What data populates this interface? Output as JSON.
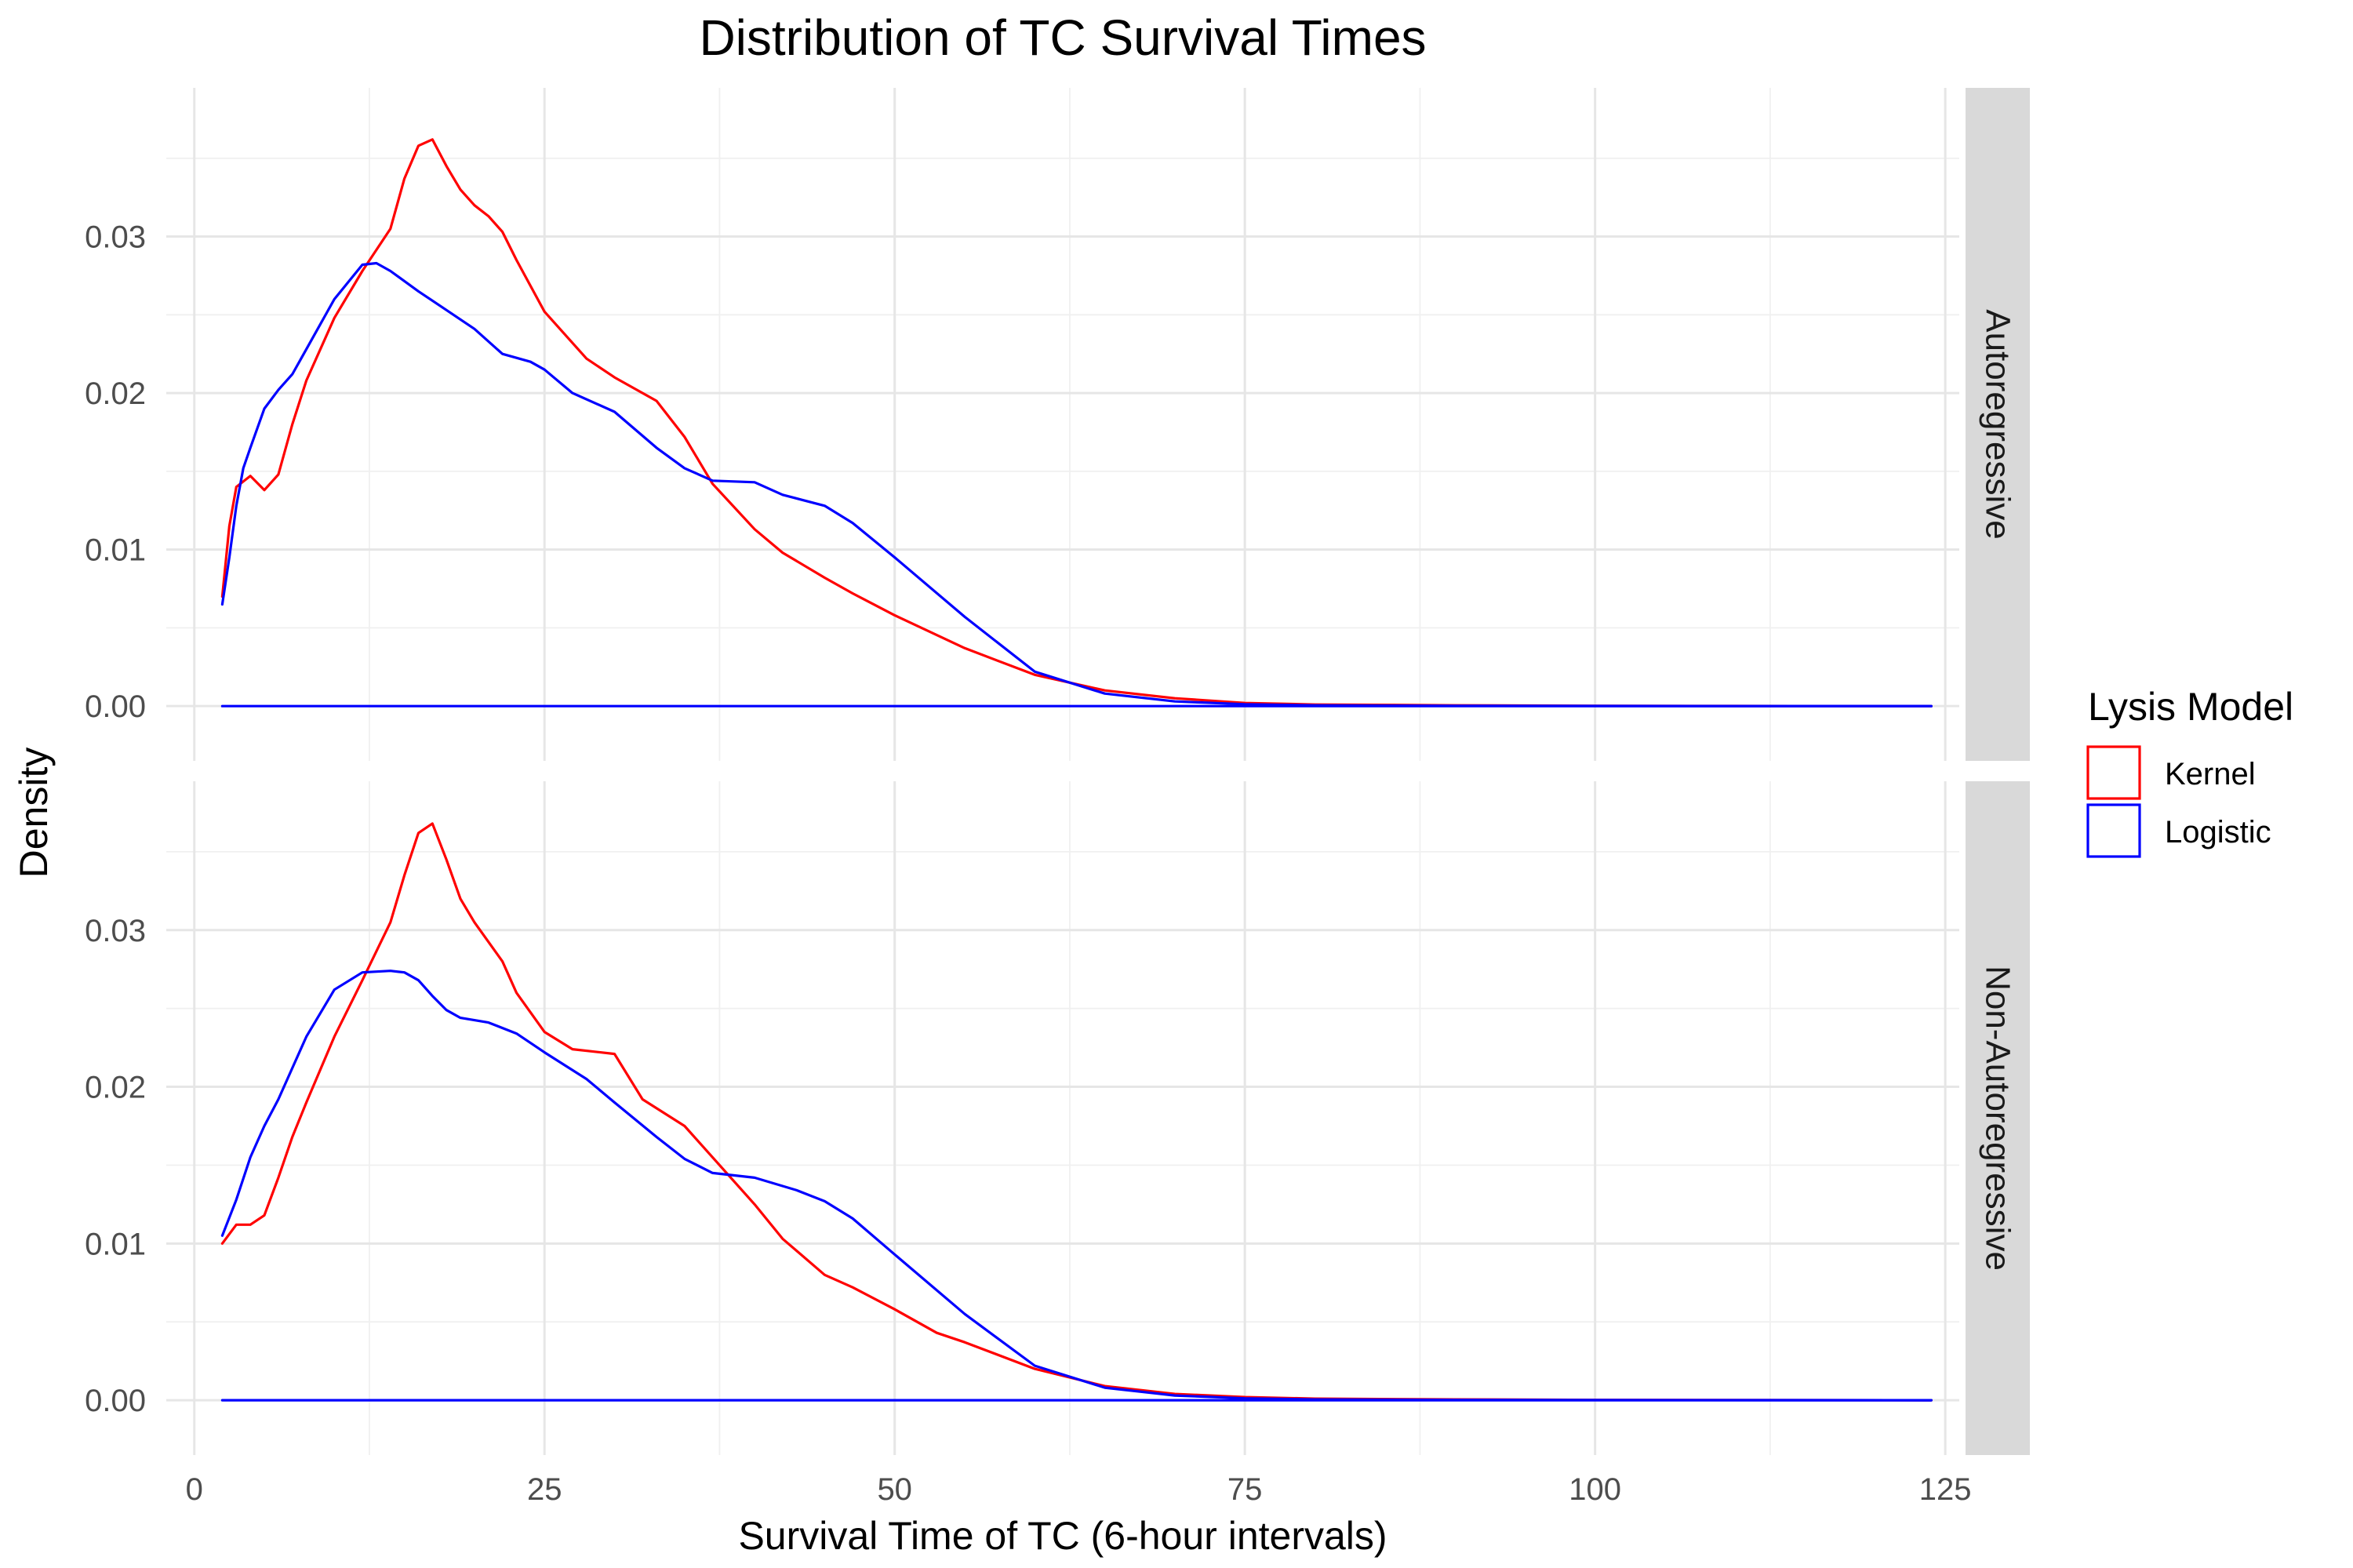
{
  "chart_data": {
    "type": "line",
    "title": "Distribution of TC Survival Times",
    "xlabel": "Survival Time of TC (6-hour intervals)",
    "ylabel": "Density",
    "xlim": [
      -2,
      126
    ],
    "ylim": [
      -0.0035,
      0.0395
    ],
    "x_ticks": [
      0,
      25,
      50,
      75,
      100,
      125
    ],
    "x_tick_labels": [
      "0",
      "25",
      "50",
      "75",
      "100",
      "125"
    ],
    "y_ticks": [
      0,
      0.01,
      0.02,
      0.03
    ],
    "y_tick_labels": [
      "0.00",
      "0.01",
      "0.02",
      "0.03"
    ],
    "grid": true,
    "legend": {
      "title": "Lysis Model",
      "position": "right",
      "entries": [
        {
          "label": "Kernel",
          "color": "#ff0000"
        },
        {
          "label": "Logistic",
          "color": "#0000ff"
        }
      ]
    },
    "facets": [
      {
        "label": "Autoregressive",
        "series": [
          {
            "name": "Kernel",
            "color": "#ff0000",
            "x": [
              2,
              2.5,
              3,
              4,
              5,
              6,
              7,
              8,
              10,
              12,
              14,
              15,
              16,
              17,
              18,
              19,
              20,
              21,
              22,
              23,
              25,
              28,
              30,
              33,
              35,
              37,
              40,
              42,
              45,
              47,
              50,
              55,
              60,
              65,
              70,
              75,
              80,
              90,
              100,
              110,
              124
            ],
            "y": [
              0.007,
              0.0115,
              0.014,
              0.0147,
              0.0138,
              0.0148,
              0.018,
              0.0208,
              0.0248,
              0.0278,
              0.0305,
              0.0337,
              0.0358,
              0.0362,
              0.0345,
              0.033,
              0.032,
              0.0313,
              0.0303,
              0.0285,
              0.0252,
              0.0222,
              0.021,
              0.0195,
              0.0172,
              0.0142,
              0.0113,
              0.0098,
              0.0082,
              0.0072,
              0.0058,
              0.0037,
              0.002,
              0.001,
              0.0005,
              0.0002,
              0.0001,
              5e-05,
              2e-05,
              1e-05,
              0
            ]
          },
          {
            "name": "Logistic",
            "color": "#0000ff",
            "x": [
              2,
              2.5,
              3,
              3.5,
              4,
              5,
              6,
              7,
              8,
              10,
              12,
              13,
              14,
              16,
              18,
              20,
              22,
              24,
              25,
              27,
              30,
              33,
              35,
              37,
              40,
              42,
              45,
              47,
              50,
              55,
              60,
              65,
              70,
              75,
              80,
              90,
              100,
              110,
              124
            ],
            "y": [
              0.0065,
              0.0095,
              0.0128,
              0.0152,
              0.0165,
              0.019,
              0.0202,
              0.0212,
              0.0228,
              0.026,
              0.0282,
              0.0283,
              0.0278,
              0.0265,
              0.0253,
              0.0241,
              0.0225,
              0.022,
              0.0215,
              0.02,
              0.0188,
              0.0165,
              0.0152,
              0.0144,
              0.0143,
              0.0135,
              0.0128,
              0.0117,
              0.0095,
              0.0057,
              0.0022,
              0.0008,
              0.0003,
              0.00012,
              5e-05,
              2e-05,
              1e-05,
              0,
              0
            ]
          },
          {
            "name": "Logistic",
            "color": "#0000ff",
            "x": [
              2,
              124
            ],
            "y": [
              0,
              0
            ]
          }
        ]
      },
      {
        "label": "Non-Autoregressive",
        "series": [
          {
            "name": "Kernel",
            "color": "#ff0000",
            "x": [
              2,
              3,
              4,
              5,
              6,
              7,
              8,
              10,
              12,
              14,
              15,
              16,
              17,
              18,
              19,
              20,
              22,
              23,
              25,
              27,
              30,
              32,
              35,
              37,
              40,
              42,
              45,
              47,
              50,
              53,
              55,
              60,
              65,
              70,
              75,
              80,
              90,
              100,
              124
            ],
            "y": [
              0.01,
              0.0112,
              0.0112,
              0.0118,
              0.0142,
              0.0168,
              0.019,
              0.0232,
              0.0268,
              0.0305,
              0.0335,
              0.0362,
              0.0368,
              0.0345,
              0.032,
              0.0305,
              0.028,
              0.026,
              0.0235,
              0.0224,
              0.0221,
              0.0192,
              0.0175,
              0.0155,
              0.0125,
              0.0103,
              0.008,
              0.0072,
              0.0058,
              0.0043,
              0.0037,
              0.002,
              0.0009,
              0.0004,
              0.0002,
              0.0001,
              5e-05,
              2e-05,
              0
            ]
          },
          {
            "name": "Logistic",
            "color": "#0000ff",
            "x": [
              2,
              3,
              4,
              5,
              6,
              7,
              8,
              10,
              12,
              14,
              15,
              16,
              17,
              18,
              19,
              21,
              23,
              25,
              28,
              30,
              33,
              35,
              37,
              40,
              43,
              45,
              47,
              50,
              55,
              60,
              65,
              70,
              75,
              80,
              90,
              100,
              124
            ],
            "y": [
              0.0105,
              0.0128,
              0.0155,
              0.0175,
              0.0192,
              0.0212,
              0.0232,
              0.0262,
              0.0273,
              0.0274,
              0.0273,
              0.0268,
              0.0258,
              0.0249,
              0.0244,
              0.0241,
              0.0234,
              0.0222,
              0.0205,
              0.019,
              0.0168,
              0.0154,
              0.0145,
              0.0142,
              0.0134,
              0.0127,
              0.0116,
              0.0093,
              0.0055,
              0.0022,
              0.0008,
              0.0003,
              0.00012,
              5e-05,
              2e-05,
              1e-05,
              0
            ]
          },
          {
            "name": "Logistic",
            "color": "#0000ff",
            "x": [
              2,
              124
            ],
            "y": [
              0,
              0
            ]
          }
        ]
      }
    ]
  }
}
